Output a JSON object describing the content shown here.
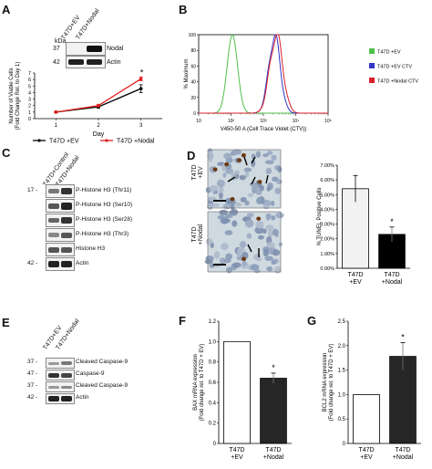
{
  "panels": {
    "A": {
      "letter": "A",
      "blot": {
        "kda_label": "kDa",
        "lanes": [
          "T47D+EV",
          "T47D+Nodal"
        ],
        "rows": [
          {
            "mw": "37",
            "label": "Nodal"
          },
          {
            "mw": "42",
            "label": "Actin"
          }
        ]
      },
      "legend": [
        "T47D +EV",
        "T47D +Nodal"
      ],
      "significance": "*"
    },
    "B": {
      "letter": "B",
      "legend": [
        "T47D +EV",
        "T47D +EV CTV",
        "T47D +Nodal CTV"
      ]
    },
    "C": {
      "letter": "C",
      "lanes": [
        "T47D+Control",
        "T47D+Nodal"
      ],
      "rows": [
        {
          "mw": "17",
          "label": "P-Histone H3 (Thr11)"
        },
        {
          "mw": "",
          "label": "P-Histone H3 (Ser10)"
        },
        {
          "mw": "",
          "label": "P-Histone H3 (Ser28)"
        },
        {
          "mw": "",
          "label": "P-Histone H3 (Thr3)"
        },
        {
          "mw": "",
          "label": "Histone H3"
        },
        {
          "mw": "42",
          "label": "Actin"
        }
      ]
    },
    "D": {
      "letter": "D",
      "image_labels": [
        "T47D\n+EV",
        "T47D\n+Nodal"
      ],
      "significance": "*"
    },
    "E": {
      "letter": "E",
      "lanes": [
        "T47D+EV",
        "T47D+Nodal"
      ],
      "rows": [
        {
          "mw": "37",
          "label": "Cleaved Caspase-9"
        },
        {
          "mw": "47",
          "label": "Caspase-9"
        },
        {
          "mw": "37",
          "label": "Cleaved Caspase-9"
        },
        {
          "mw": "42",
          "label": "Actin"
        }
      ]
    },
    "F": {
      "letter": "F",
      "significance": "*"
    },
    "G": {
      "letter": "G",
      "significance": "*"
    }
  },
  "chart_data": [
    {
      "type": "line",
      "panel": "A",
      "xlabel": "Day",
      "ylabel": "Number of Viable Cells\n(Fold Change Rel. to Day 1)",
      "x": [
        1,
        2,
        3
      ],
      "xticks": [
        "1",
        "2",
        "3"
      ],
      "ylim": [
        0,
        7
      ],
      "yticks": [
        "0",
        "1",
        "2",
        "3",
        "4",
        "5",
        "6",
        "7"
      ],
      "series": [
        {
          "name": "T47D +EV",
          "values": [
            1.0,
            1.8,
            4.6
          ],
          "errors": [
            0.1,
            0.2,
            0.6
          ],
          "color": "#000000"
        },
        {
          "name": "T47D +Nodal",
          "values": [
            1.0,
            2.0,
            6.1
          ],
          "errors": [
            0.1,
            0.2,
            0.3
          ],
          "color": "#e0201e"
        }
      ]
    },
    {
      "type": "line",
      "panel": "B",
      "xlabel": "V450-50 A (Cell Trace Violet (CTV))",
      "ylabel": "% Maximum",
      "xscale": "log",
      "xlim": [
        10,
        100000
      ],
      "xticks": [
        "10",
        "10²",
        "10³",
        "10⁴",
        "10⁵"
      ],
      "ylim": [
        0,
        100
      ],
      "yticks": [
        "0",
        "20",
        "40",
        "60",
        "80",
        "100"
      ],
      "series": [
        {
          "name": "T47D +EV",
          "color": "#4fbf4a",
          "peak_x": 110,
          "peak_y": 100
        },
        {
          "name": "T47D +EV CTV",
          "color": "#3535c8",
          "peak_x": 2200,
          "peak_y": 98
        },
        {
          "name": "T47D +Nodal CTV",
          "color": "#d8202a",
          "peak_x": 2500,
          "peak_y": 100
        }
      ]
    },
    {
      "type": "bar",
      "panel": "D",
      "ylabel": "% TUNEL Positive Cells",
      "categories": [
        "T47D\n+EV",
        "T47D\n+Nodal"
      ],
      "values": [
        5.4,
        2.3
      ],
      "errors": [
        0.9,
        0.5
      ],
      "ylim": [
        0,
        7
      ],
      "yticks": [
        "0.00%",
        "1.00%",
        "2.00%",
        "3.00%",
        "4.00%",
        "5.00%",
        "6.00%",
        "7.00%"
      ],
      "colors": [
        "#f2f2f2",
        "#000000"
      ]
    },
    {
      "type": "bar",
      "panel": "F",
      "ylabel": "BAX mRNA expression\n(Fold change rel. to T47D + EV)",
      "categories": [
        "T47D\n+EV",
        "T47D\n+Nodal"
      ],
      "values": [
        1.0,
        0.64
      ],
      "errors": [
        0.0,
        0.05
      ],
      "ylim": [
        0,
        1.2
      ],
      "yticks": [
        "0",
        "0.2",
        "0.4",
        "0.6",
        "0.8",
        "1.0",
        "1.2"
      ],
      "colors": [
        "#ffffff",
        "#262626"
      ]
    },
    {
      "type": "bar",
      "panel": "G",
      "ylabel": "BCL2 mRNA expression\n(Fold change rel. to T47D + EV)",
      "categories": [
        "T47D\n+EV",
        "T47D\n+Nodal"
      ],
      "values": [
        1.0,
        1.78
      ],
      "errors": [
        0.0,
        0.28
      ],
      "ylim": [
        0,
        2.5
      ],
      "yticks": [
        "0",
        "0.5",
        "1.0",
        "1.5",
        "2.0",
        "2.5"
      ],
      "colors": [
        "#ffffff",
        "#262626"
      ]
    }
  ]
}
